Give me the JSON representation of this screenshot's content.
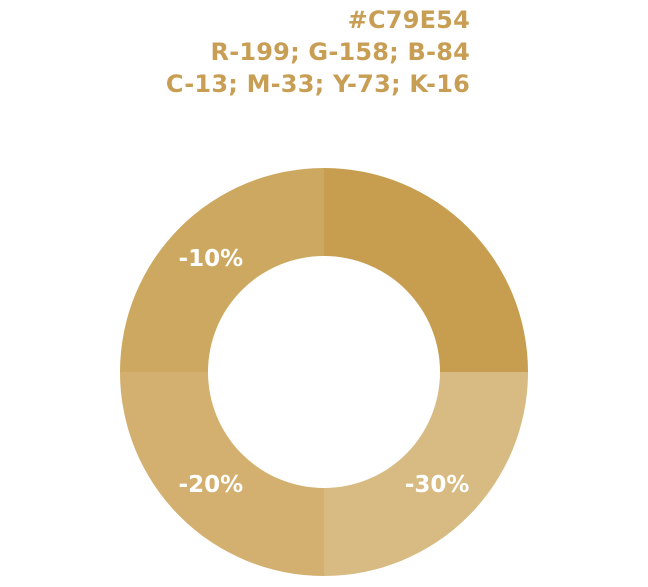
{
  "swatch": {
    "hex": "#C79E54",
    "rgb": "R-199; G-158; B-84",
    "cmyk": "C-13; M-33; Y-73; K-16",
    "text_color": "#c79e54"
  },
  "chart_data": {
    "type": "pie",
    "variant": "donut",
    "title": "",
    "base_color": "#C79E54",
    "categories": [
      "",
      "-30%",
      "-20%",
      "-10%"
    ],
    "values": [
      25,
      25,
      25,
      25
    ],
    "colors": [
      "#c79e4f",
      "#d8bb82",
      "#d3b06f",
      "#cda860"
    ],
    "labels": [
      "",
      "-30%",
      "-20%",
      "-10%"
    ]
  }
}
